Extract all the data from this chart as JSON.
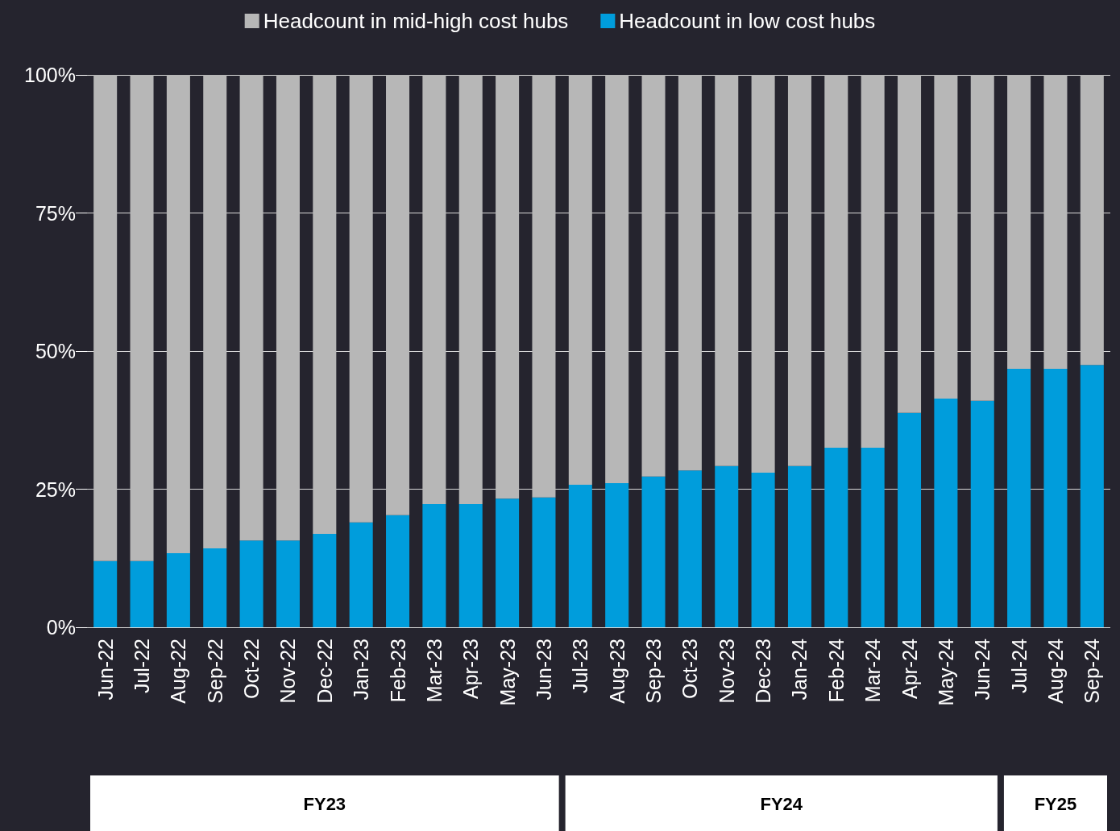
{
  "chart_data": {
    "type": "bar",
    "stacked": true,
    "categories": [
      "Jun-22",
      "Jul-22",
      "Aug-22",
      "Sep-22",
      "Oct-22",
      "Nov-22",
      "Dec-22",
      "Jan-23",
      "Feb-23",
      "Mar-23",
      "Apr-23",
      "May-23",
      "Jun-23",
      "Jul-23",
      "Aug-23",
      "Sep-23",
      "Oct-23",
      "Nov-23",
      "Dec-23",
      "Jan-24",
      "Feb-24",
      "Mar-24",
      "Apr-24",
      "May-24",
      "Jun-24",
      "Jul-24",
      "Aug-24",
      "Sep-24"
    ],
    "series": [
      {
        "name": "Headcount in low cost hubs",
        "color": "#009ddc",
        "values": [
          12,
          12,
          13.4,
          14.3,
          15.7,
          15.7,
          16.9,
          19,
          20.3,
          22.3,
          22.3,
          23.3,
          23.5,
          25.8,
          26.1,
          27.3,
          28.4,
          29.2,
          28,
          29.2,
          32.5,
          32.5,
          38.8,
          41.4,
          41,
          46.8,
          46.8,
          47.5
        ]
      },
      {
        "name": "Headcount in mid-high cost hubs",
        "color": "#b7b7b7",
        "values": [
          88,
          88,
          86.6,
          85.7,
          84.3,
          84.3,
          83.1,
          81,
          79.7,
          77.7,
          77.7,
          76.7,
          76.5,
          74.2,
          73.9,
          72.7,
          71.6,
          70.8,
          72,
          70.8,
          67.5,
          67.5,
          61.2,
          58.6,
          59,
          53.2,
          53.2,
          52.5
        ]
      }
    ],
    "ylim": [
      0,
      100
    ],
    "yticks": [
      {
        "value": 0,
        "label": "0%"
      },
      {
        "value": 25,
        "label": "25%"
      },
      {
        "value": 50,
        "label": "50%"
      },
      {
        "value": 75,
        "label": "75%"
      },
      {
        "value": 100,
        "label": "100%"
      }
    ],
    "grid": "y",
    "legend": "top",
    "annotations": [
      "FY23",
      "FY24",
      "FY25"
    ]
  }
}
